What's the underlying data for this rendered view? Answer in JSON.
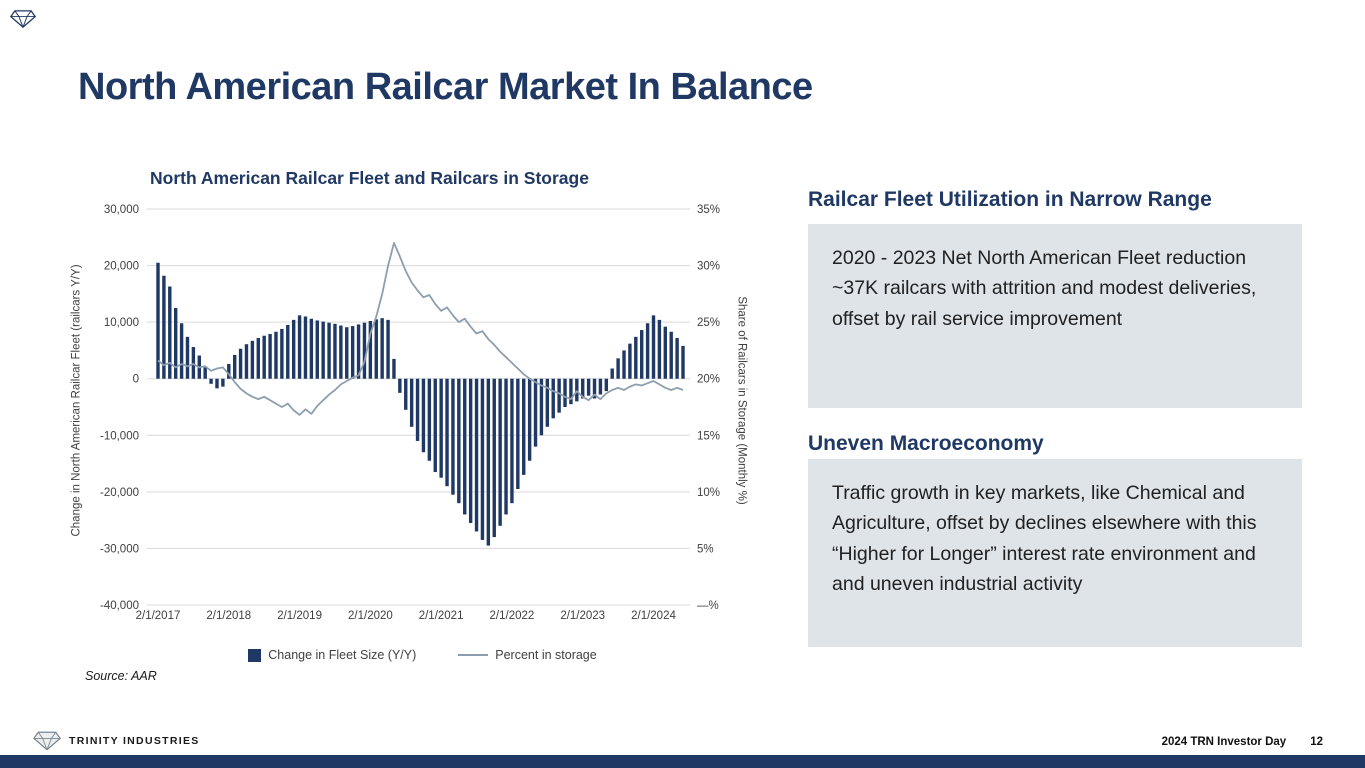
{
  "slide": {
    "title": "North American Railcar Market In Balance",
    "source_note": "Source: AAR",
    "footer": {
      "brand": "TRINITY INDUSTRIES",
      "event_label": "2024 TRN Investor Day",
      "page_number": "12"
    }
  },
  "right_panel": {
    "sections": [
      {
        "heading": "Railcar Fleet Utilization in Narrow Range",
        "body": "2020 - 2023 Net North American Fleet reduction ~37K railcars with attrition and modest deliveries, offset by rail service improvement"
      },
      {
        "heading": "Uneven Macroeconomy",
        "body": "Traffic growth in key markets, like Chemical and Agriculture, offset by declines elsewhere with this “Higher for Longer” interest rate environment and and uneven industrial activity"
      }
    ]
  },
  "colors": {
    "navy": "#1F3864",
    "line_gray": "#8E9EAE",
    "box_bg": "#DEE4E8",
    "grid": "#D9D9D9"
  },
  "chart_data": {
    "type": "combo",
    "title": "North American Railcar Fleet and Railcars in Storage",
    "grid_color": "#D9D9D9",
    "x_tick_labels": [
      "2/1/2017",
      "2/1/2018",
      "2/1/2019",
      "2/1/2020",
      "2/1/2021",
      "2/1/2022",
      "2/1/2023",
      "2/1/2024"
    ],
    "x_tick_indices": [
      0,
      12,
      24,
      36,
      48,
      60,
      72,
      84
    ],
    "x_start_month": "2/1/2017",
    "x_frequency": "monthly",
    "left_axis": {
      "label": "Change in North American Railcar Fleet (railcars Y/Y)",
      "min": -40000,
      "max": 30000,
      "ticks": [
        30000,
        20000,
        10000,
        0,
        -10000,
        -20000,
        -30000,
        -40000
      ],
      "tick_labels": [
        "30,000",
        "20,000",
        "10,000",
        "0",
        "-10,000",
        "-20,000",
        "-30,000",
        "-40,000"
      ]
    },
    "right_axis": {
      "label": "Share of Railcars in Storage (Monthly %)",
      "min": 0,
      "max": 35,
      "ticks": [
        35,
        30,
        25,
        20,
        15,
        10,
        5,
        0
      ],
      "tick_labels": [
        "35%",
        "30%",
        "25%",
        "20%",
        "15%",
        "10%",
        "5%",
        "—%"
      ]
    },
    "legend_position": "bottom",
    "series": [
      {
        "name": "Change in Fleet Size (Y/Y)",
        "type": "bar",
        "color": "#1F3864",
        "values": [
          20500,
          18200,
          16300,
          12500,
          9800,
          7400,
          5600,
          4100,
          2000,
          -900,
          -1700,
          -1400,
          2600,
          4200,
          5300,
          6100,
          6700,
          7200,
          7600,
          7900,
          8300,
          8800,
          9500,
          10400,
          11200,
          11000,
          10600,
          10300,
          10100,
          9900,
          9700,
          9400,
          9100,
          9300,
          9600,
          9900,
          10200,
          10500,
          10700,
          10400,
          3500,
          -2500,
          -5500,
          -8500,
          -11000,
          -13000,
          -14500,
          -16500,
          -17500,
          -19000,
          -20500,
          -22000,
          -24000,
          -25500,
          -27000,
          -28500,
          -29500,
          -28000,
          -26000,
          -24000,
          -22000,
          -19500,
          -17000,
          -14500,
          -12000,
          -10000,
          -8500,
          -7000,
          -6000,
          -5000,
          -4500,
          -4000,
          -3500,
          -3000,
          -3500,
          -2800,
          -2200,
          1800,
          3600,
          5000,
          6200,
          7400,
          8600,
          9800,
          11200,
          10400,
          9200,
          8300,
          7200,
          5800
        ]
      },
      {
        "name": "Percent in storage",
        "type": "line",
        "color": "#8E9EAE",
        "values": [
          21.6,
          21.2,
          21.4,
          21.0,
          21.3,
          21.1,
          21.3,
          21.0,
          21.1,
          20.7,
          20.9,
          21.0,
          20.4,
          19.7,
          19.1,
          18.7,
          18.4,
          18.2,
          18.4,
          18.1,
          17.8,
          17.5,
          17.8,
          17.2,
          16.8,
          17.3,
          16.9,
          17.6,
          18.1,
          18.6,
          19.0,
          19.5,
          19.8,
          20.1,
          20.3,
          21.5,
          24.0,
          25.5,
          27.5,
          30.0,
          32.0,
          30.8,
          29.5,
          28.5,
          27.8,
          27.2,
          27.4,
          26.6,
          26.0,
          26.3,
          25.6,
          25.0,
          25.3,
          24.6,
          24.0,
          24.2,
          23.5,
          23.0,
          22.4,
          21.9,
          21.4,
          20.9,
          20.4,
          20.0,
          19.7,
          19.4,
          19.2,
          18.9,
          18.7,
          18.4,
          18.2,
          18.9,
          18.4,
          18.1,
          18.6,
          18.2,
          18.7,
          19.0,
          19.2,
          19.0,
          19.3,
          19.5,
          19.4,
          19.6,
          19.8,
          19.5,
          19.2,
          19.0,
          19.2,
          19.0
        ]
      }
    ]
  }
}
